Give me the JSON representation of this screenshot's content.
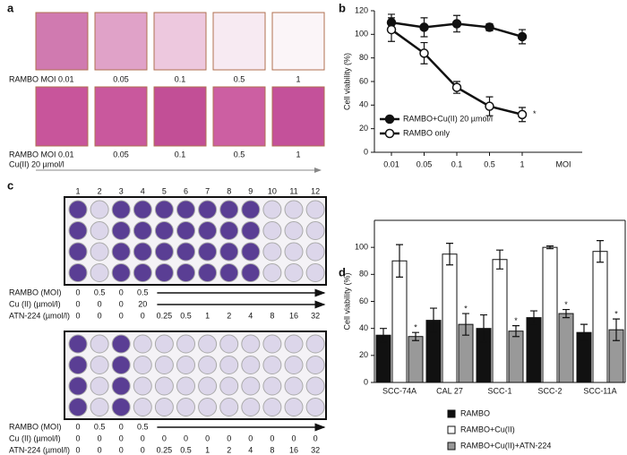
{
  "panel_labels": [
    "a",
    "b",
    "c",
    "d"
  ],
  "panel_a": {
    "row1_labels": [
      "RAMBO MOI 0.01",
      "0.05",
      "0.1",
      "0.5",
      "1"
    ],
    "row2_labels": [
      "RAMBO MOI 0.01",
      "0.05",
      "0.1",
      "0.5",
      "1"
    ],
    "row2_treatment": "Cu(II) 20 µmol/l"
  },
  "panel_c": {
    "columns": [
      "1",
      "2",
      "3",
      "4",
      "5",
      "6",
      "7",
      "8",
      "9",
      "10",
      "11",
      "12"
    ],
    "plates": [
      {
        "rows": [
          {
            "label": "RAMBO (MOI)",
            "values": [
              "0",
              "0.5",
              "0",
              "0.5"
            ]
          },
          {
            "label": "Cu (II) (µmol/l)",
            "values": [
              "0",
              "0",
              "0",
              "20"
            ]
          },
          {
            "label": "ATN-224 (µmol/l)",
            "values": [
              "0",
              "0",
              "0",
              "0",
              "0.25",
              "0.5",
              "1",
              "2",
              "4",
              "8",
              "16",
              "32"
            ]
          }
        ]
      },
      {
        "rows": [
          {
            "label": "RAMBO (MOI)",
            "values": [
              "0",
              "0.5",
              "0",
              "0.5"
            ]
          },
          {
            "label": "Cu (II) (µmol/l)",
            "values": [
              "0",
              "0",
              "0",
              "0",
              "0",
              "0",
              "0",
              "0",
              "0",
              "0",
              "0",
              "0"
            ]
          },
          {
            "label": "ATN-224 (µmol/l)",
            "values": [
              "0",
              "0",
              "0",
              "0",
              "0.25",
              "0.5",
              "1",
              "2",
              "4",
              "8",
              "16",
              "32"
            ]
          }
        ]
      }
    ]
  },
  "chart_data": [
    {
      "type": "line",
      "x_label": "MOI",
      "y_label": "Cell viability (%)",
      "categories": [
        "0.01",
        "0.05",
        "0.1",
        "0.5",
        "1"
      ],
      "ylim": [
        0,
        120
      ],
      "yticks": [
        0,
        20,
        40,
        60,
        80,
        100,
        120
      ],
      "legend": "lower left",
      "series": [
        {
          "name": "RAMBO+Cu(II) 20 µmol/l",
          "color": "#111111",
          "values": [
            110,
            106,
            109,
            106,
            98
          ],
          "errors": [
            7,
            8,
            7,
            3,
            6
          ]
        },
        {
          "name": "RAMBO only",
          "color": "#ffffff",
          "values": [
            104,
            84,
            55,
            39,
            32
          ],
          "errors": [
            10,
            9,
            5,
            8,
            6
          ],
          "annotations": [
            null,
            null,
            null,
            null,
            "*"
          ]
        }
      ]
    },
    {
      "type": "bar",
      "y_label": "Cell viability (%)",
      "categories": [
        "SCC-74A",
        "CAL 27",
        "SCC-1",
        "SCC-2",
        "SCC-11A"
      ],
      "ylim": [
        0,
        120
      ],
      "yticks": [
        0,
        20,
        40,
        60,
        80,
        100
      ],
      "legend": "bottom",
      "series": [
        {
          "name": "RAMBO",
          "color": "#111111",
          "values": [
            35,
            46,
            40,
            48,
            37
          ],
          "errors": [
            5,
            9,
            10,
            5,
            6
          ]
        },
        {
          "name": "RAMBO+Cu(II)",
          "color": "#ffffff",
          "values": [
            90,
            95,
            91,
            100,
            97
          ],
          "errors": [
            12,
            8,
            7,
            1,
            8
          ]
        },
        {
          "name": "RAMBO+Cu(II)+ATN-224",
          "color": "#999999",
          "values": [
            34,
            43,
            38,
            51,
            39
          ],
          "errors": [
            3,
            8,
            4,
            3,
            8
          ],
          "annotations": [
            "*",
            "*",
            "*",
            "*",
            "*"
          ]
        }
      ]
    }
  ]
}
